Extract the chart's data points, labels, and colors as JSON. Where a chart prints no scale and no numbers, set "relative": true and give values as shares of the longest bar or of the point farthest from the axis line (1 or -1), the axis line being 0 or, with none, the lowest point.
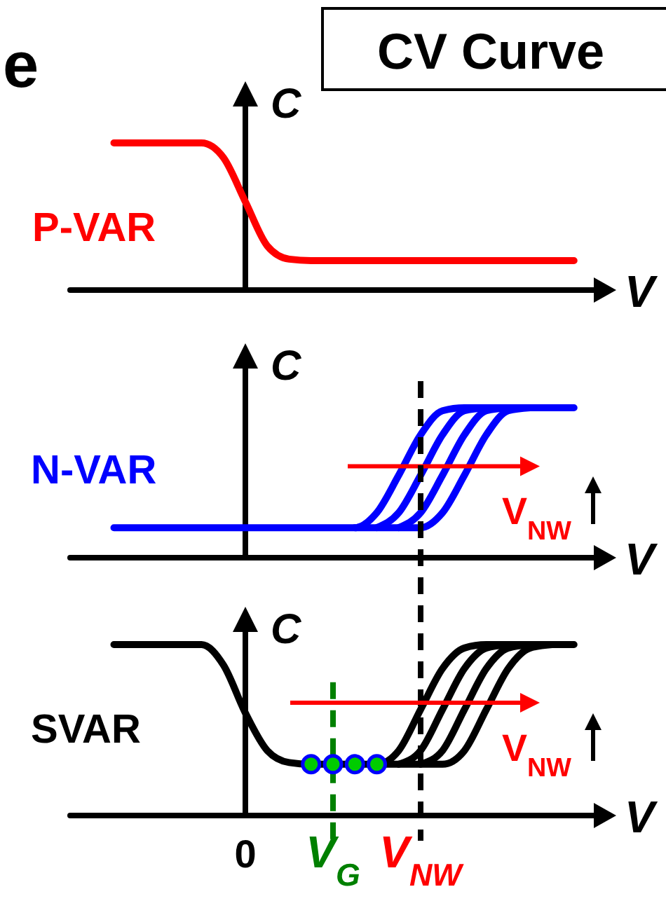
{
  "chart_data": [
    {
      "type": "line",
      "title": "CV Curve",
      "xlabel": "V",
      "ylabel": "C",
      "relative": true,
      "categories": [
        null,
        null,
        null,
        null,
        null,
        null,
        null,
        null,
        null,
        null,
        null,
        null,
        null,
        null,
        null,
        null,
        null,
        null,
        null,
        null,
        null,
        null
      ],
      "annotations": [
        "e"
      ],
      "series": [
        {
          "name": "P-VAR",
          "color": "#ff0000",
          "values": [
            1,
            1,
            1,
            1,
            1,
            0.9,
            0.6,
            0.3,
            0.21,
            0.2,
            0.2,
            0.2,
            0.2,
            0.2,
            0.2,
            0.2,
            0.2,
            0.2,
            0.2,
            0.2,
            0.2,
            0.2
          ]
        }
      ]
    },
    {
      "type": "line",
      "xlabel": "V",
      "ylabel": "C",
      "relative": true,
      "categories": [
        null,
        null,
        null,
        null,
        null,
        null,
        null,
        null,
        null,
        null,
        null,
        null,
        null,
        null,
        null,
        null,
        null,
        null,
        null,
        null,
        null,
        null
      ],
      "annotations": [
        "V$_{NW}$"
      ],
      "series": [
        {
          "name": "N-VAR",
          "color": "#0000ff",
          "values": [
            0.2,
            0.2,
            0.2,
            0.2,
            0.2,
            0.2,
            0.2,
            0.2,
            0.2,
            0.2,
            0.2,
            0.2,
            0.3,
            0.55,
            0.82,
            0.98,
            1,
            1,
            1,
            1,
            1,
            1
          ]
        },
        {
          "color": "#0000ff",
          "values": [
            null,
            null,
            null,
            null,
            null,
            null,
            null,
            null,
            null,
            null,
            null,
            null,
            0.2,
            0.3,
            0.55,
            0.82,
            0.98,
            1,
            null,
            null,
            null,
            null
          ]
        },
        {
          "color": "#0000ff",
          "values": [
            null,
            null,
            null,
            null,
            null,
            null,
            null,
            null,
            null,
            null,
            null,
            null,
            null,
            0.2,
            0.3,
            0.55,
            0.82,
            0.98,
            1,
            null,
            null,
            null
          ]
        },
        {
          "color": "#0000ff",
          "values": [
            null,
            null,
            null,
            null,
            null,
            null,
            null,
            null,
            null,
            null,
            null,
            0.2,
            0.2,
            0.2,
            0.2,
            0.3,
            0.55,
            0.82,
            0.98,
            1,
            null,
            null
          ]
        }
      ]
    },
    {
      "type": "line",
      "xlabel": "V",
      "ylabel": "C",
      "relative": true,
      "categories": [
        null,
        null,
        null,
        null,
        null,
        null,
        "0",
        null,
        null,
        null,
        "V$_{G}$",
        null,
        null,
        null,
        "V$_{NW}$",
        null,
        null,
        null,
        null,
        null,
        null,
        null
      ],
      "annotations": [
        "V$_{NW}$"
      ],
      "ref_lines": [
        {
          "axis": "x",
          "value": "V$_{G}$",
          "color": "#008000",
          "line_style": "dashed"
        },
        {
          "axis": "x",
          "value": "V$_{NW}$",
          "color": "#000000",
          "line_style": "dashed"
        }
      ],
      "series": [
        {
          "name": "SVAR",
          "color": "#000000",
          "values": [
            1,
            1,
            1,
            1,
            1,
            0.88,
            0.6,
            0.38,
            0.31,
            0.3,
            0.3,
            0.3,
            0.3,
            0.38,
            0.62,
            0.86,
            0.98,
            1,
            1,
            1,
            1,
            1
          ]
        },
        {
          "color": "#000000",
          "values": [
            null,
            null,
            null,
            null,
            null,
            null,
            null,
            null,
            null,
            null,
            null,
            null,
            null,
            0.3,
            0.38,
            0.62,
            0.86,
            0.98,
            1,
            null,
            null,
            null
          ]
        },
        {
          "color": "#000000",
          "values": [
            null,
            null,
            null,
            null,
            null,
            null,
            null,
            null,
            null,
            null,
            null,
            null,
            null,
            null,
            0.3,
            0.38,
            0.62,
            0.86,
            0.98,
            1,
            null,
            null
          ]
        },
        {
          "color": "#000000",
          "values": [
            null,
            null,
            null,
            null,
            null,
            null,
            null,
            null,
            null,
            null,
            null,
            null,
            0.3,
            0.3,
            0.3,
            0.3,
            0.38,
            0.62,
            0.86,
            0.98,
            1,
            null
          ]
        },
        {
          "type": "scatter",
          "marker": "circle",
          "color": "#00cc00",
          "values": [
            null,
            null,
            null,
            null,
            null,
            null,
            null,
            null,
            null,
            0.3,
            0.3,
            0.3,
            0.3,
            null,
            null,
            null,
            null,
            null,
            null,
            null,
            null,
            null
          ]
        }
      ]
    }
  ]
}
